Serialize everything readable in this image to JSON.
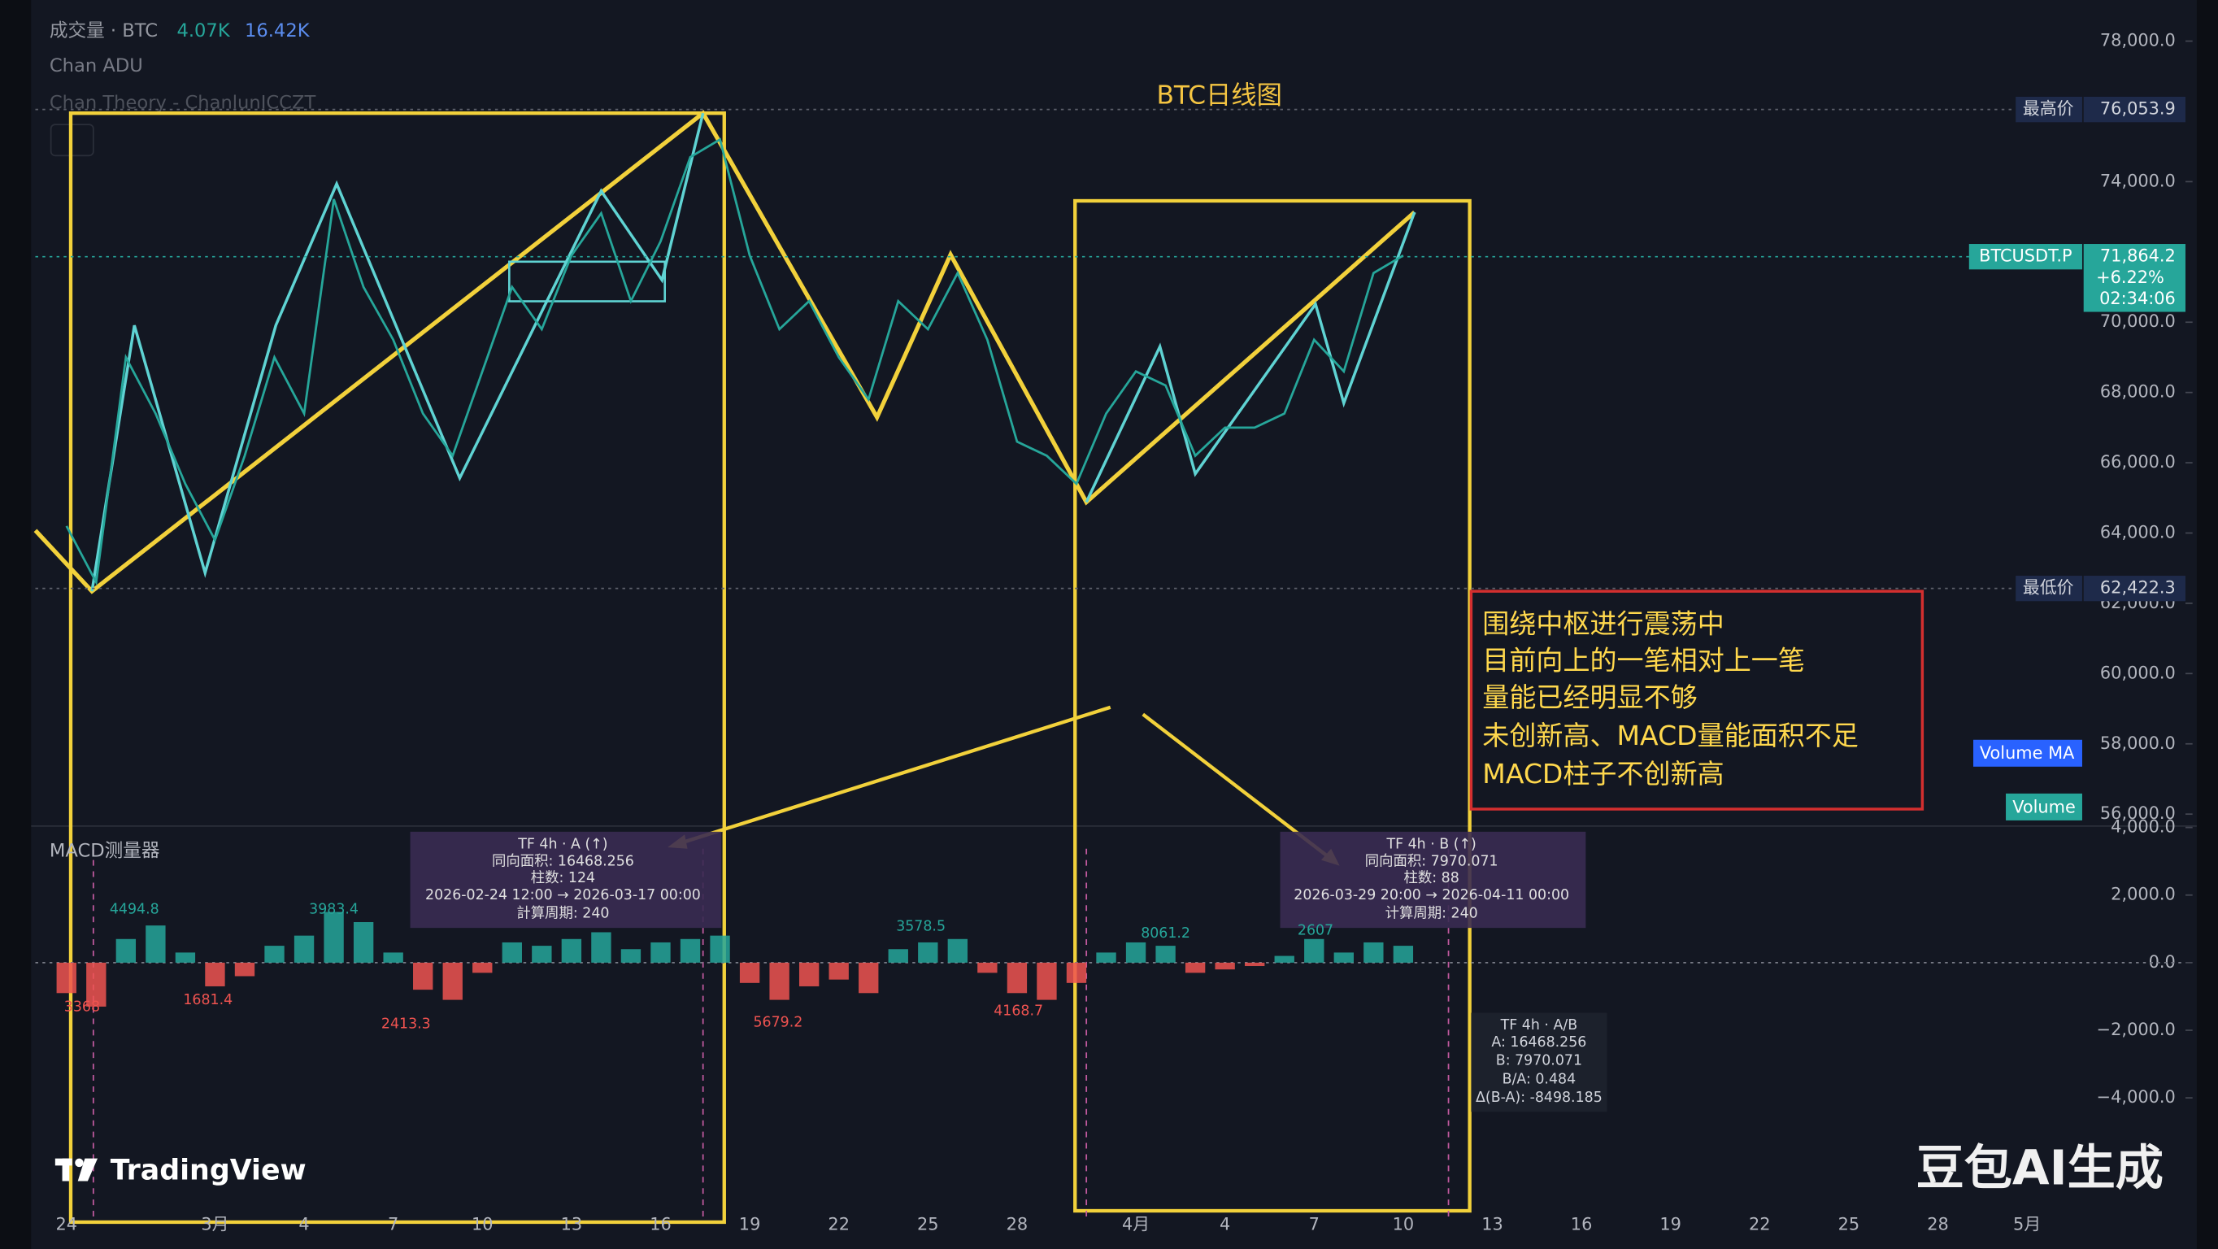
{
  "header": {
    "volume_label": "成交量 · BTC",
    "volume_value": "4.07K",
    "volume_ma_value": "16.42K",
    "indicator_1": "Chan ADU",
    "indicator_2": "Chan Theory - ChanlunICCZT"
  },
  "chart_data": [
    {
      "type": "line",
      "title": "BTC日线图",
      "categories": [
        "24",
        null,
        null,
        null,
        null,
        "3月",
        null,
        null,
        "4",
        null,
        null,
        "7",
        null,
        null,
        "10",
        null,
        null,
        "13",
        null,
        null,
        "16",
        null,
        null,
        "19",
        null,
        null,
        "22",
        null,
        null,
        "25",
        null,
        null,
        "28",
        null,
        null,
        null,
        "4月",
        null,
        null,
        "4",
        null,
        null,
        "7",
        null,
        null,
        "10",
        null,
        null,
        "13",
        null,
        null,
        "16",
        null,
        null,
        "19",
        null,
        null,
        "22",
        null,
        null,
        "25",
        null,
        null,
        "28",
        null,
        null,
        "5月"
      ],
      "series": [
        {
          "name": "BTCUSDT.P",
          "color": "#26a69a",
          "values": [
            64200,
            62600,
            69000,
            67400,
            65400,
            63800,
            66200,
            69000,
            67400,
            73500,
            71000,
            69500,
            67400,
            66200,
            68600,
            71000,
            69800,
            71900,
            73100,
            70600,
            72300,
            74700,
            75200,
            71900,
            69800,
            70600,
            69000,
            67800,
            70600,
            69800,
            71400,
            69500,
            66600,
            66200,
            65400,
            67400,
            68600,
            68200,
            66200,
            67000,
            67000,
            67400,
            69500,
            68600,
            71400,
            71900,
            null,
            null,
            null,
            null,
            null,
            null,
            null,
            null,
            null,
            null,
            null,
            null,
            null,
            null,
            null,
            null,
            null,
            null,
            null,
            null,
            null
          ]
        }
      ],
      "ylim": [
        55700,
        79170
      ],
      "yticks": [
        {
          "value": 78000,
          "label": "78,000.0"
        },
        {
          "value": 74000,
          "label": "74,000.0"
        },
        {
          "value": 70000,
          "label": "70,000.0"
        },
        {
          "value": 68000,
          "label": "68,000.0"
        },
        {
          "value": 66000,
          "label": "66,000.0"
        },
        {
          "value": 64000,
          "label": "64,000.0"
        },
        {
          "value": 62000,
          "label": "62,000.0"
        },
        {
          "value": 60000,
          "label": "60,000.0"
        },
        {
          "value": 58000,
          "label": "58,000.0"
        },
        {
          "value": 56000,
          "label": "56,000.0"
        }
      ],
      "price_levels": {
        "labels": [
          "最高价",
          "最低价"
        ],
        "values": [
          76053.9,
          62422.3
        ],
        "value_labels": [
          "76,053.9",
          "62,422.3"
        ]
      },
      "last_price": 71864.2,
      "last_price_label": "71,864.2",
      "change": "+6.22%",
      "countdown": "02:34:06",
      "annotation": [
        "围绕中枢进行震荡中",
        "目前向上的一笔相对上一笔",
        "量能已经明显不够",
        "未创新高、MACD量能面积不足",
        "MACD柱子不创新高"
      ],
      "legend": [
        "Volume MA",
        "Volume"
      ]
    },
    {
      "type": "bar",
      "title": "MACD测量器",
      "color_up": "#26a69a",
      "color_down": "#ef5350",
      "values": [
        -900,
        -1300,
        700,
        1100,
        300,
        -700,
        -400,
        500,
        800,
        1500,
        1200,
        300,
        -800,
        -1100,
        -300,
        600,
        500,
        700,
        900,
        400,
        600,
        700,
        800,
        -600,
        -1100,
        -700,
        -500,
        -900,
        400,
        600,
        700,
        -300,
        -900,
        -1100,
        -600,
        300,
        600,
        500,
        -300,
        -200,
        -100,
        200,
        700,
        300,
        600,
        500,
        null,
        null,
        null,
        null,
        null,
        null,
        null,
        null,
        null,
        null,
        null,
        null,
        null,
        null,
        null,
        null,
        null,
        null,
        null,
        null,
        null
      ],
      "ylim": [
        -7300,
        4000
      ],
      "yticks": [
        {
          "value": 4000,
          "label": "4,000.0"
        },
        {
          "value": 2000,
          "label": "2,000.0"
        },
        {
          "value": 0,
          "label": "0.0"
        },
        {
          "value": -2000,
          "label": "−2,000.0"
        },
        {
          "value": -4000,
          "label": "−4,000.0"
        }
      ],
      "area_labels": [
        "4494.8",
        "3983.4",
        "3578.5",
        "8061.2",
        "2607",
        "3368",
        "1681.4",
        "2413.3",
        "5679.2",
        "4168.7"
      ]
    }
  ],
  "measure": {
    "a": [
      "TF 4h · A (↑)",
      "同向面积: 16468.256",
      "柱数: 124",
      "2026-02-24 12:00 → 2026-03-17 00:00",
      "計算周期: 240"
    ],
    "b": [
      "TF 4h · B (↑)",
      "同向面积: 7970.071",
      "柱数: 88",
      "2026-03-29 20:00 → 2026-04-11 00:00",
      "计算周期: 240"
    ],
    "summary": [
      "TF 4h · A/B",
      "A: 16468.256",
      "B: 7970.071",
      "B/A: 0.484",
      "Δ(B-A): -8498.185"
    ]
  },
  "brand": "TradingView",
  "watermark": "豆包AI生成"
}
